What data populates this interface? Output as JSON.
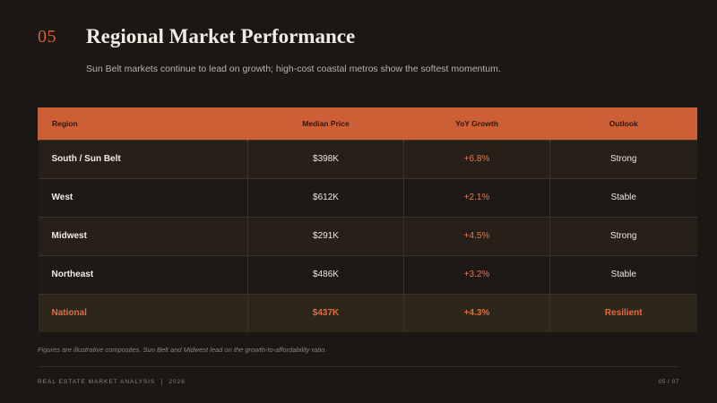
{
  "header": {
    "slide_number": "05",
    "title": "Regional Market Performance",
    "subtitle": "Sun Belt markets continue to lead on growth; high-cost coastal metros show the softest momentum."
  },
  "table": {
    "columns": [
      "Region",
      "Median Price",
      "YoY Growth",
      "Outlook"
    ],
    "rows": [
      {
        "region": "South / Sun Belt",
        "median_price": "$398K",
        "yoy_growth": "+6.8%",
        "outlook": "Strong"
      },
      {
        "region": "West",
        "median_price": "$612K",
        "yoy_growth": "+2.1%",
        "outlook": "Stable"
      },
      {
        "region": "Midwest",
        "median_price": "$291K",
        "yoy_growth": "+4.5%",
        "outlook": "Strong"
      },
      {
        "region": "Northeast",
        "median_price": "$486K",
        "yoy_growth": "+3.2%",
        "outlook": "Stable"
      },
      {
        "region": "National",
        "median_price": "$437K",
        "yoy_growth": "+4.3%",
        "outlook": "Resilient"
      }
    ]
  },
  "footnote": "Figures are illustrative composites. Sun Belt and Midwest lead on the growth-to-affordability ratio.",
  "footer": {
    "deck_name": "REAL ESTATE MARKET ANALYSIS",
    "year": "2026",
    "page": "05 / 07"
  },
  "colors": {
    "accent": "#cc5f36",
    "background": "#1b1715",
    "growth_text": "#e07a52"
  }
}
